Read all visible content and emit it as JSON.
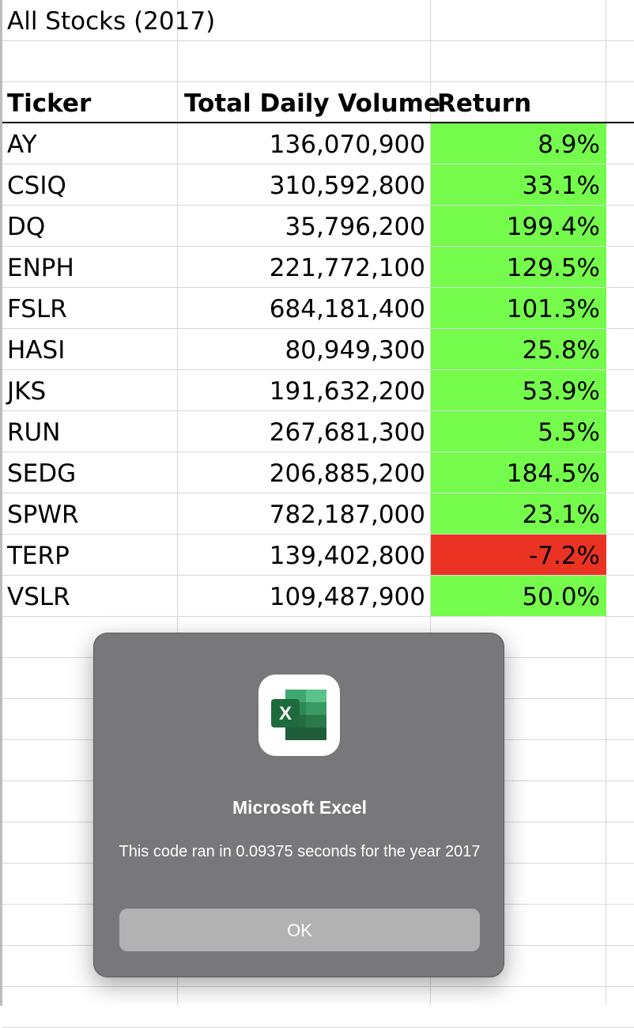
{
  "sheet": {
    "title": "All Stocks (2017)",
    "headers": {
      "ticker": "Ticker",
      "volume": "Total Daily Volume",
      "return": "Return"
    },
    "rows": [
      {
        "ticker": "AY",
        "volume": "136,070,900",
        "return": "8.9%",
        "status": "positive"
      },
      {
        "ticker": "CSIQ",
        "volume": "310,592,800",
        "return": "33.1%",
        "status": "positive"
      },
      {
        "ticker": "DQ",
        "volume": "35,796,200",
        "return": "199.4%",
        "status": "positive"
      },
      {
        "ticker": "ENPH",
        "volume": "221,772,100",
        "return": "129.5%",
        "status": "positive"
      },
      {
        "ticker": "FSLR",
        "volume": "684,181,400",
        "return": "101.3%",
        "status": "positive"
      },
      {
        "ticker": "HASI",
        "volume": "80,949,300",
        "return": "25.8%",
        "status": "positive"
      },
      {
        "ticker": "JKS",
        "volume": "191,632,200",
        "return": "53.9%",
        "status": "positive"
      },
      {
        "ticker": "RUN",
        "volume": "267,681,300",
        "return": "5.5%",
        "status": "positive"
      },
      {
        "ticker": "SEDG",
        "volume": "206,885,200",
        "return": "184.5%",
        "status": "positive"
      },
      {
        "ticker": "SPWR",
        "volume": "782,187,000",
        "return": "23.1%",
        "status": "positive"
      },
      {
        "ticker": "TERP",
        "volume": "139,402,800",
        "return": "-7.2%",
        "status": "negative"
      },
      {
        "ticker": "VSLR",
        "volume": "109,487,900",
        "return": "50.0%",
        "status": "positive"
      }
    ],
    "colors": {
      "positive": "#74fb4b",
      "negative": "#eb3323"
    }
  },
  "dialog": {
    "app_icon": "excel-icon",
    "title": "Microsoft Excel",
    "message": "This code ran in 0.09375 seconds for the year 2017",
    "ok_label": "OK"
  }
}
